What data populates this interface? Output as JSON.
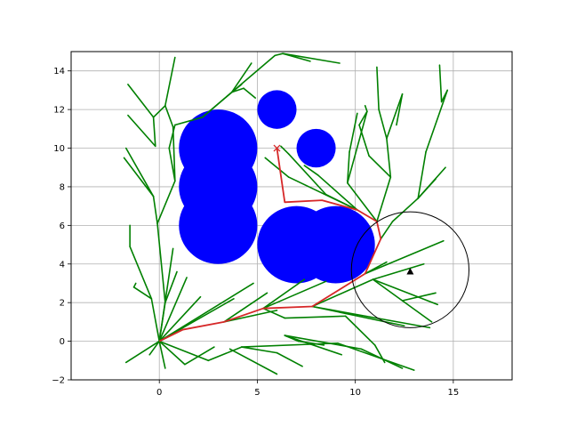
{
  "chart_data": {
    "type": "scatter",
    "title": "",
    "xlabel": "",
    "ylabel": "",
    "xlim": [
      -4.5,
      18
    ],
    "ylim": [
      -2,
      15
    ],
    "grid": true,
    "x_ticks": [
      0,
      5,
      10,
      15
    ],
    "y_ticks": [
      -2,
      0,
      2,
      4,
      6,
      8,
      10,
      12,
      14
    ],
    "x_tick_labels": [
      "0",
      "5",
      "10",
      "15"
    ],
    "y_tick_labels": [
      "−2",
      "0",
      "2",
      "4",
      "6",
      "8",
      "10",
      "12",
      "14"
    ],
    "colors": {
      "tree": "#008000",
      "path": "#d62728",
      "obstacle": "#0000ff",
      "goal_region": "#000000",
      "goal_marker": "#000000",
      "start_marker": "#d62728",
      "grid": "#b0b0b0"
    },
    "obstacles": [
      {
        "x": 3.0,
        "y": 10.0,
        "r": 2.0
      },
      {
        "x": 3.0,
        "y": 8.0,
        "r": 2.0
      },
      {
        "x": 3.0,
        "y": 6.0,
        "r": 2.0
      },
      {
        "x": 6.0,
        "y": 12.0,
        "r": 1.0
      },
      {
        "x": 8.0,
        "y": 10.0,
        "r": 1.0
      },
      {
        "x": 6.0,
        "y": 5.0,
        "r": 1.0
      },
      {
        "x": 7.0,
        "y": 5.0,
        "r": 2.0
      },
      {
        "x": 9.0,
        "y": 5.0,
        "r": 2.0
      }
    ],
    "goal_region": {
      "x": 12.8,
      "y": 3.7,
      "r": 3.0
    },
    "goal_point": {
      "x": 12.8,
      "y": 3.6
    },
    "start_point": {
      "x": 6.0,
      "y": 10.0
    },
    "path": [
      [
        0,
        0
      ],
      [
        1.2,
        0.6
      ],
      [
        3.3,
        1.0
      ],
      [
        5.3,
        1.7
      ],
      [
        7.8,
        1.8
      ],
      [
        10.5,
        3.5
      ],
      [
        11.3,
        5.3
      ],
      [
        11.1,
        6.2
      ],
      [
        10.1,
        6.8
      ],
      [
        8.3,
        7.3
      ],
      [
        6.4,
        7.2
      ],
      [
        6.0,
        10.0
      ]
    ],
    "tree_edges": [
      [
        [
          0,
          0
        ],
        [
          0.3,
          2.0
        ]
      ],
      [
        [
          0,
          0
        ],
        [
          0.7,
          4.8
        ]
      ],
      [
        [
          0,
          0
        ],
        [
          1.4,
          3.3
        ]
      ],
      [
        [
          0,
          0
        ],
        [
          -0.4,
          2.2
        ]
      ],
      [
        [
          0,
          0
        ],
        [
          -0.5,
          -0.7
        ]
      ],
      [
        [
          0,
          0
        ],
        [
          -1.7,
          -1.1
        ]
      ],
      [
        [
          0,
          0
        ],
        [
          0.3,
          -1.4
        ]
      ],
      [
        [
          0,
          0
        ],
        [
          1.3,
          -1.2
        ]
      ],
      [
        [
          0,
          0
        ],
        [
          2.5,
          -1.0
        ]
      ],
      [
        [
          0,
          0
        ],
        [
          2.1,
          2.3
        ]
      ],
      [
        [
          0,
          0
        ],
        [
          3.8,
          2.2
        ]
      ],
      [
        [
          0,
          0
        ],
        [
          4.8,
          3.0
        ]
      ],
      [
        [
          0,
          0
        ],
        [
          1.2,
          0.6
        ]
      ],
      [
        [
          0.3,
          2.0
        ],
        [
          0.9,
          3.6
        ]
      ],
      [
        [
          0.3,
          2.0
        ],
        [
          -0.1,
          6.1
        ]
      ],
      [
        [
          -0.1,
          6.1
        ],
        [
          0.8,
          8.3
        ]
      ],
      [
        [
          0.8,
          8.3
        ],
        [
          0.5,
          10.0
        ]
      ],
      [
        [
          0.5,
          10.0
        ],
        [
          0.8,
          11.2
        ]
      ],
      [
        [
          0.8,
          11.2
        ],
        [
          2.2,
          11.6
        ]
      ],
      [
        [
          0.8,
          8.3
        ],
        [
          0.7,
          11.1
        ]
      ],
      [
        [
          0.7,
          11.1
        ],
        [
          0.3,
          12.2
        ]
      ],
      [
        [
          0.3,
          12.2
        ],
        [
          0.8,
          14.7
        ]
      ],
      [
        [
          0.3,
          12.2
        ],
        [
          -0.3,
          11.6
        ]
      ],
      [
        [
          -0.3,
          11.6
        ],
        [
          -1.6,
          13.3
        ]
      ],
      [
        [
          -0.3,
          11.6
        ],
        [
          -0.2,
          10.1
        ]
      ],
      [
        [
          -0.2,
          10.1
        ],
        [
          -1.6,
          11.7
        ]
      ],
      [
        [
          -0.1,
          6.1
        ],
        [
          -0.3,
          7.5
        ]
      ],
      [
        [
          -0.3,
          7.5
        ],
        [
          -1.8,
          9.5
        ]
      ],
      [
        [
          -0.3,
          7.5
        ],
        [
          -1.7,
          10.0
        ]
      ],
      [
        [
          -0.4,
          2.2
        ],
        [
          -1.5,
          4.9
        ]
      ],
      [
        [
          -1.5,
          4.9
        ],
        [
          -1.5,
          6.0
        ]
      ],
      [
        [
          -0.4,
          2.2
        ],
        [
          -1.3,
          2.8
        ]
      ],
      [
        [
          -1.3,
          2.8
        ],
        [
          -1.2,
          3.0
        ]
      ],
      [
        [
          2.2,
          11.6
        ],
        [
          3.7,
          12.9
        ]
      ],
      [
        [
          3.7,
          12.9
        ],
        [
          4.7,
          14.4
        ]
      ],
      [
        [
          3.7,
          12.9
        ],
        [
          4.2,
          13.3
        ]
      ],
      [
        [
          3.7,
          12.9
        ],
        [
          4.3,
          13.1
        ]
      ],
      [
        [
          4.3,
          13.1
        ],
        [
          4.9,
          12.6
        ]
      ],
      [
        [
          2.2,
          11.6
        ],
        [
          5.9,
          14.8
        ]
      ],
      [
        [
          5.9,
          14.8
        ],
        [
          6.3,
          14.9
        ]
      ],
      [
        [
          6.3,
          14.9
        ],
        [
          7.7,
          14.5
        ]
      ],
      [
        [
          6.3,
          14.9
        ],
        [
          9.2,
          14.4
        ]
      ],
      [
        [
          3.3,
          1.0
        ],
        [
          5.5,
          2.5
        ]
      ],
      [
        [
          3.3,
          1.0
        ],
        [
          6.0,
          1.6
        ]
      ],
      [
        [
          5.3,
          1.7
        ],
        [
          7.4,
          3.2
        ]
      ],
      [
        [
          5.3,
          1.7
        ],
        [
          6.4,
          1.2
        ]
      ],
      [
        [
          6.4,
          1.2
        ],
        [
          9.5,
          1.3
        ]
      ],
      [
        [
          5.3,
          1.7
        ],
        [
          8.5,
          3.1
        ]
      ],
      [
        [
          7.8,
          1.8
        ],
        [
          12.5,
          0.8
        ]
      ],
      [
        [
          7.8,
          1.8
        ],
        [
          10.9,
          3.2
        ]
      ],
      [
        [
          10.9,
          3.2
        ],
        [
          12.4,
          2.1
        ]
      ],
      [
        [
          10.9,
          3.2
        ],
        [
          14.2,
          1.9
        ]
      ],
      [
        [
          10.9,
          3.2
        ],
        [
          13.5,
          4.0
        ]
      ],
      [
        [
          10.5,
          3.5
        ],
        [
          11.6,
          4.1
        ]
      ],
      [
        [
          10.5,
          3.5
        ],
        [
          14.5,
          5.2
        ]
      ],
      [
        [
          12.4,
          2.1
        ],
        [
          14.1,
          2.5
        ]
      ],
      [
        [
          12.4,
          2.1
        ],
        [
          13.9,
          1.0
        ]
      ],
      [
        [
          7.8,
          1.8
        ],
        [
          13.8,
          0.7
        ]
      ],
      [
        [
          1.3,
          -1.2
        ],
        [
          2.8,
          -0.3
        ]
      ],
      [
        [
          2.5,
          -1.0
        ],
        [
          4.2,
          -0.3
        ]
      ],
      [
        [
          4.2,
          -0.3
        ],
        [
          6.0,
          -0.6
        ]
      ],
      [
        [
          4.2,
          -0.3
        ],
        [
          9.1,
          -0.1
        ]
      ],
      [
        [
          6.4,
          0.3
        ],
        [
          9.3,
          -0.7
        ]
      ],
      [
        [
          6.4,
          0.3
        ],
        [
          10.3,
          -0.4
        ]
      ],
      [
        [
          6.4,
          0.3
        ],
        [
          7.1,
          0.0
        ]
      ],
      [
        [
          7.1,
          0.0
        ],
        [
          8.4,
          -0.2
        ]
      ],
      [
        [
          3.6,
          -0.4
        ],
        [
          6.0,
          -1.7
        ]
      ],
      [
        [
          6.0,
          -0.6
        ],
        [
          7.3,
          -1.3
        ]
      ],
      [
        [
          9.5,
          1.3
        ],
        [
          11.0,
          -0.2
        ]
      ],
      [
        [
          10.3,
          -0.4
        ],
        [
          12.4,
          -1.4
        ]
      ],
      [
        [
          9.1,
          -0.1
        ],
        [
          13.0,
          -1.5
        ]
      ],
      [
        [
          11.0,
          -0.2
        ],
        [
          11.5,
          -1.1
        ]
      ],
      [
        [
          11.3,
          5.3
        ],
        [
          11.9,
          6.2
        ]
      ],
      [
        [
          11.1,
          6.2
        ],
        [
          11.8,
          8.5
        ]
      ],
      [
        [
          11.8,
          8.5
        ],
        [
          11.6,
          10.5
        ]
      ],
      [
        [
          11.6,
          10.5
        ],
        [
          11.2,
          12.0
        ]
      ],
      [
        [
          11.2,
          12.0
        ],
        [
          11.1,
          14.2
        ]
      ],
      [
        [
          11.6,
          10.5
        ],
        [
          12.4,
          12.8
        ]
      ],
      [
        [
          11.9,
          6.2
        ],
        [
          13.2,
          7.4
        ]
      ],
      [
        [
          13.2,
          7.4
        ],
        [
          14.6,
          9.0
        ]
      ],
      [
        [
          13.2,
          7.4
        ],
        [
          13.6,
          9.8
        ]
      ],
      [
        [
          13.6,
          9.8
        ],
        [
          14.7,
          13.0
        ]
      ],
      [
        [
          14.7,
          13.0
        ],
        [
          14.4,
          12.4
        ]
      ],
      [
        [
          14.4,
          12.4
        ],
        [
          14.3,
          14.3
        ]
      ],
      [
        [
          11.1,
          6.2
        ],
        [
          9.6,
          8.2
        ]
      ],
      [
        [
          9.6,
          8.2
        ],
        [
          9.7,
          9.8
        ]
      ],
      [
        [
          9.6,
          8.2
        ],
        [
          10.6,
          11.9
        ]
      ],
      [
        [
          10.6,
          11.9
        ],
        [
          10.5,
          12.2
        ]
      ],
      [
        [
          10.1,
          6.8
        ],
        [
          8.5,
          7.6
        ]
      ],
      [
        [
          8.5,
          7.6
        ],
        [
          6.6,
          9.7
        ]
      ],
      [
        [
          6.6,
          9.7
        ],
        [
          6.2,
          10.1
        ]
      ],
      [
        [
          10.1,
          6.8
        ],
        [
          8.1,
          8.6
        ]
      ],
      [
        [
          8.1,
          8.6
        ],
        [
          7.4,
          9.1
        ]
      ],
      [
        [
          10.1,
          6.8
        ],
        [
          6.6,
          8.5
        ]
      ],
      [
        [
          6.6,
          8.5
        ],
        [
          5.4,
          9.5
        ]
      ],
      [
        [
          9.7,
          9.8
        ],
        [
          10.1,
          11.8
        ]
      ],
      [
        [
          11.8,
          8.5
        ],
        [
          10.7,
          9.6
        ]
      ],
      [
        [
          10.7,
          9.6
        ],
        [
          10.2,
          11.2
        ]
      ],
      [
        [
          10.2,
          11.2
        ],
        [
          10.6,
          11.9
        ]
      ],
      [
        [
          13.2,
          7.4
        ],
        [
          14.1,
          8.4
        ]
      ],
      [
        [
          12.4,
          12.8
        ],
        [
          12.1,
          11.2
        ]
      ]
    ]
  }
}
